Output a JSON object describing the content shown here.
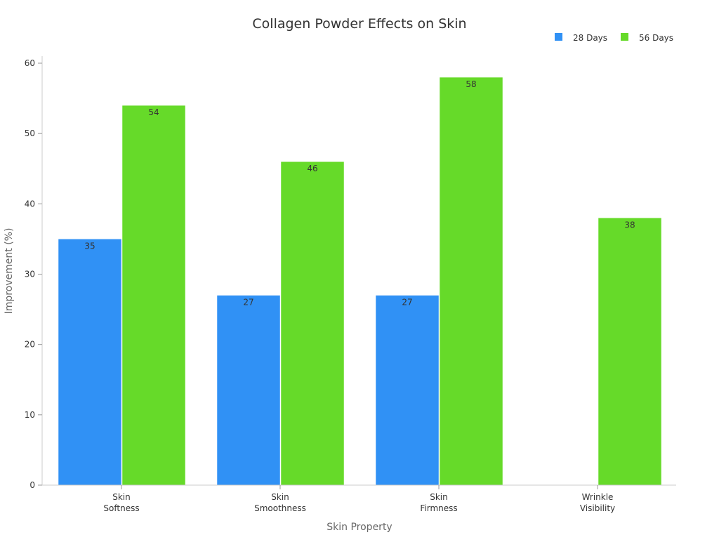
{
  "chart_data": {
    "type": "bar",
    "title": "Collagen Powder Effects on Skin",
    "xlabel": "Skin Property",
    "ylabel": "Improvement (%)",
    "categories": [
      [
        "Skin",
        "Softness"
      ],
      [
        "Skin",
        "Smoothness"
      ],
      [
        "Skin",
        "Firmness"
      ],
      [
        "Wrinkle",
        "Visibility"
      ]
    ],
    "series": [
      {
        "name": "28 Days",
        "color": "#3091f5",
        "values": [
          35,
          27,
          27,
          null
        ]
      },
      {
        "name": "56 Days",
        "color": "#66da29",
        "values": [
          54,
          46,
          58,
          38
        ]
      }
    ],
    "ylim": [
      0,
      60
    ],
    "yticks": [
      0,
      10,
      20,
      30,
      40,
      50,
      60
    ],
    "grid": false,
    "legend": "top-right"
  }
}
